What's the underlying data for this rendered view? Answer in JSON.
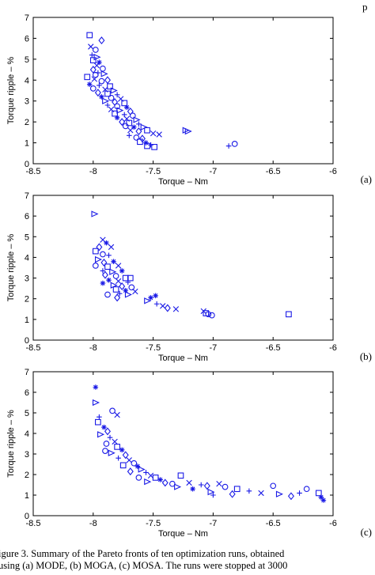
{
  "figure_caption": {
    "line1": "igure 3.    Summary of the Pareto fronts of ten optimization runs, obtained",
    "line2": "using (a) MODE, (b) MOGA, (c) MOSA. The runs were stopped at 3000"
  },
  "header_fragment": "p",
  "colors": {
    "marker": "#1a1ae6",
    "axis": "#000000"
  },
  "chart_data": [
    {
      "type": "scatter",
      "panel_label": "(a)",
      "xlabel": "Torque – Nm",
      "ylabel": "Torque ripple – %",
      "xlim": [
        -8.5,
        -6.0
      ],
      "ylim": [
        0,
        7
      ],
      "xticks": [
        "-8.5",
        "-8",
        "-7.5",
        "-7",
        "-6.5",
        "-6"
      ],
      "yticks": [
        "0",
        "1",
        "2",
        "3",
        "4",
        "5",
        "6",
        "7"
      ],
      "grid": false,
      "points": [
        [
          -8.03,
          6.15,
          "s"
        ],
        [
          -7.93,
          5.9,
          "d"
        ],
        [
          -8.02,
          5.6,
          "x"
        ],
        [
          -7.98,
          5.45,
          "o"
        ],
        [
          -8.01,
          5.2,
          "+"
        ],
        [
          -7.97,
          5.1,
          "t"
        ],
        [
          -8.0,
          4.95,
          "s"
        ],
        [
          -7.95,
          4.85,
          "*"
        ],
        [
          -7.97,
          4.7,
          "x"
        ],
        [
          -7.92,
          4.55,
          "o"
        ],
        [
          -8.0,
          4.5,
          "d"
        ],
        [
          -7.96,
          4.35,
          "+"
        ],
        [
          -7.91,
          4.3,
          "t"
        ],
        [
          -8.05,
          4.15,
          "s"
        ],
        [
          -7.99,
          4.05,
          "x"
        ],
        [
          -7.93,
          3.95,
          "o"
        ],
        [
          -7.88,
          4.0,
          "d"
        ],
        [
          -8.03,
          3.8,
          "*"
        ],
        [
          -7.95,
          3.75,
          "+"
        ],
        [
          -7.86,
          3.7,
          "s"
        ],
        [
          -8.0,
          3.6,
          "o"
        ],
        [
          -7.9,
          3.55,
          "x"
        ],
        [
          -7.83,
          3.5,
          "t"
        ],
        [
          -7.96,
          3.4,
          "d"
        ],
        [
          -7.88,
          3.35,
          "s"
        ],
        [
          -7.8,
          3.3,
          "+"
        ],
        [
          -7.93,
          3.2,
          "*"
        ],
        [
          -7.85,
          3.15,
          "o"
        ],
        [
          -7.77,
          3.1,
          "x"
        ],
        [
          -7.9,
          3.0,
          "t"
        ],
        [
          -7.82,
          2.95,
          "d"
        ],
        [
          -7.74,
          2.9,
          "s"
        ],
        [
          -7.88,
          2.8,
          "+"
        ],
        [
          -7.8,
          2.75,
          "o"
        ],
        [
          -7.72,
          2.7,
          "*"
        ],
        [
          -7.85,
          2.6,
          "x"
        ],
        [
          -7.78,
          2.55,
          "t"
        ],
        [
          -7.69,
          2.5,
          "d"
        ],
        [
          -7.82,
          2.4,
          "s"
        ],
        [
          -7.74,
          2.35,
          "+"
        ],
        [
          -7.67,
          2.3,
          "o"
        ],
        [
          -7.8,
          2.2,
          "*"
        ],
        [
          -7.72,
          2.15,
          "x"
        ],
        [
          -7.64,
          2.1,
          "t"
        ],
        [
          -7.76,
          2.0,
          "d"
        ],
        [
          -7.7,
          1.95,
          "s"
        ],
        [
          -7.62,
          1.9,
          "+"
        ],
        [
          -7.73,
          1.8,
          "o"
        ],
        [
          -7.66,
          1.75,
          "*"
        ],
        [
          -7.58,
          1.75,
          "t"
        ],
        [
          -7.69,
          1.6,
          "x"
        ],
        [
          -7.62,
          1.55,
          "d"
        ],
        [
          -7.55,
          1.6,
          "s"
        ],
        [
          -7.5,
          1.45,
          "x"
        ],
        [
          -7.7,
          1.35,
          "+"
        ],
        [
          -7.64,
          1.25,
          "o"
        ],
        [
          -7.59,
          1.2,
          "d"
        ],
        [
          -7.61,
          1.05,
          "s"
        ],
        [
          -7.56,
          1.0,
          "*"
        ],
        [
          -7.52,
          0.9,
          "+"
        ],
        [
          -7.55,
          0.85,
          "s"
        ],
        [
          -7.49,
          0.8,
          "s"
        ],
        [
          -7.23,
          1.6,
          "t"
        ],
        [
          -7.21,
          1.55,
          "t"
        ],
        [
          -6.87,
          0.85,
          "+"
        ],
        [
          -6.82,
          0.95,
          "o"
        ],
        [
          -7.45,
          1.4,
          "x"
        ],
        [
          -7.98,
          4.25,
          "o"
        ]
      ]
    },
    {
      "type": "scatter",
      "panel_label": "(b)",
      "xlabel": "Torque – Nm",
      "ylabel": "Torque ripple – %",
      "xlim": [
        -8.5,
        -6.0
      ],
      "ylim": [
        0,
        7
      ],
      "xticks": [
        "-8.5",
        "-8",
        "-7.5",
        "-7",
        "-6.5",
        "-6"
      ],
      "yticks": [
        "0",
        "1",
        "2",
        "3",
        "4",
        "5",
        "6",
        "7"
      ],
      "grid": false,
      "points": [
        [
          -7.99,
          6.1,
          "t"
        ],
        [
          -7.92,
          4.85,
          "x"
        ],
        [
          -7.89,
          4.7,
          "*"
        ],
        [
          -7.95,
          4.5,
          "d"
        ],
        [
          -7.85,
          4.5,
          "x"
        ],
        [
          -7.98,
          4.3,
          "s"
        ],
        [
          -7.92,
          4.15,
          "o"
        ],
        [
          -7.87,
          4.1,
          "+"
        ],
        [
          -7.96,
          3.9,
          "t"
        ],
        [
          -7.91,
          3.75,
          "d"
        ],
        [
          -7.83,
          3.8,
          "*"
        ],
        [
          -7.98,
          3.6,
          "o"
        ],
        [
          -7.88,
          3.55,
          "s"
        ],
        [
          -7.79,
          3.6,
          "x"
        ],
        [
          -7.92,
          3.35,
          "+"
        ],
        [
          -7.84,
          3.3,
          "t"
        ],
        [
          -7.76,
          3.35,
          "*"
        ],
        [
          -7.9,
          3.15,
          "d"
        ],
        [
          -7.81,
          3.1,
          "o"
        ],
        [
          -7.73,
          3.0,
          "s"
        ],
        [
          -7.69,
          3.0,
          "s"
        ],
        [
          -7.87,
          2.9,
          "*"
        ],
        [
          -7.79,
          2.85,
          "x"
        ],
        [
          -7.71,
          2.8,
          "+"
        ],
        [
          -7.83,
          2.65,
          "t"
        ],
        [
          -7.76,
          2.6,
          "d"
        ],
        [
          -7.68,
          2.55,
          "o"
        ],
        [
          -7.81,
          2.45,
          "s"
        ],
        [
          -7.73,
          2.4,
          "*"
        ],
        [
          -7.65,
          2.35,
          "x"
        ],
        [
          -7.78,
          2.25,
          "+"
        ],
        [
          -7.71,
          2.2,
          "t"
        ],
        [
          -7.8,
          2.05,
          "d"
        ],
        [
          -7.92,
          2.75,
          "*"
        ],
        [
          -7.88,
          2.2,
          "o"
        ],
        [
          -7.55,
          1.9,
          "t"
        ],
        [
          -7.52,
          2.05,
          "*"
        ],
        [
          -7.47,
          1.75,
          "+"
        ],
        [
          -7.42,
          1.65,
          "x"
        ],
        [
          -7.38,
          1.55,
          "d"
        ],
        [
          -7.31,
          1.5,
          "x"
        ],
        [
          -7.08,
          1.4,
          "x"
        ],
        [
          -7.06,
          1.3,
          "s"
        ],
        [
          -7.04,
          1.25,
          "o"
        ],
        [
          -7.01,
          1.2,
          "o"
        ],
        [
          -6.37,
          1.25,
          "s"
        ],
        [
          -7.48,
          2.15,
          "*"
        ]
      ]
    },
    {
      "type": "scatter",
      "panel_label": "(c)",
      "xlabel": "Torque – Nm",
      "ylabel": "Torque ripple – %",
      "xlim": [
        -8.5,
        -6.0
      ],
      "ylim": [
        0,
        7
      ],
      "xticks": [
        "-8.5",
        "-8",
        "-7.5",
        "-7",
        "-6.5",
        "-6"
      ],
      "yticks": [
        "0",
        "1",
        "2",
        "3",
        "4",
        "5",
        "6",
        "7"
      ],
      "grid": false,
      "points": [
        [
          -7.98,
          6.25,
          "*"
        ],
        [
          -7.98,
          5.5,
          "t"
        ],
        [
          -7.84,
          5.1,
          "o"
        ],
        [
          -7.95,
          4.8,
          "+"
        ],
        [
          -7.8,
          4.9,
          "x"
        ],
        [
          -7.96,
          4.55,
          "s"
        ],
        [
          -7.91,
          4.3,
          "*"
        ],
        [
          -7.88,
          4.1,
          "d"
        ],
        [
          -7.94,
          3.95,
          "t"
        ],
        [
          -7.86,
          3.8,
          "+"
        ],
        [
          -7.82,
          3.6,
          "x"
        ],
        [
          -7.89,
          3.5,
          "o"
        ],
        [
          -7.8,
          3.35,
          "s"
        ],
        [
          -7.76,
          3.2,
          "*"
        ],
        [
          -7.85,
          3.05,
          "t"
        ],
        [
          -7.73,
          2.95,
          "d"
        ],
        [
          -7.79,
          2.8,
          "+"
        ],
        [
          -7.7,
          2.7,
          "x"
        ],
        [
          -7.66,
          2.55,
          "o"
        ],
        [
          -7.75,
          2.45,
          "s"
        ],
        [
          -7.63,
          2.4,
          "*"
        ],
        [
          -7.6,
          2.25,
          "t"
        ],
        [
          -7.69,
          2.15,
          "d"
        ],
        [
          -7.56,
          2.1,
          "+"
        ],
        [
          -7.52,
          1.95,
          "x"
        ],
        [
          -7.62,
          1.85,
          "o"
        ],
        [
          -7.48,
          1.85,
          "s"
        ],
        [
          -7.44,
          1.75,
          "*"
        ],
        [
          -7.55,
          1.65,
          "t"
        ],
        [
          -7.4,
          1.6,
          "d"
        ],
        [
          -7.34,
          1.55,
          "o"
        ],
        [
          -7.27,
          1.95,
          "s"
        ],
        [
          -7.2,
          1.6,
          "x"
        ],
        [
          -7.1,
          1.5,
          "+"
        ],
        [
          -7.05,
          1.45,
          "d"
        ],
        [
          -7.3,
          1.4,
          "t"
        ],
        [
          -7.17,
          1.3,
          "*"
        ],
        [
          -6.95,
          1.55,
          "x"
        ],
        [
          -6.9,
          1.4,
          "o"
        ],
        [
          -6.8,
          1.3,
          "s"
        ],
        [
          -7.02,
          1.15,
          "t"
        ],
        [
          -6.84,
          1.05,
          "d"
        ],
        [
          -6.7,
          1.2,
          "+"
        ],
        [
          -6.6,
          1.1,
          "x"
        ],
        [
          -6.5,
          1.45,
          "o"
        ],
        [
          -6.45,
          1.05,
          "t"
        ],
        [
          -6.35,
          0.95,
          "d"
        ],
        [
          -6.28,
          1.1,
          "+"
        ],
        [
          -6.22,
          1.3,
          "o"
        ],
        [
          -6.12,
          1.1,
          "s"
        ],
        [
          -6.1,
          0.9,
          "*"
        ],
        [
          -6.08,
          0.75,
          "*"
        ],
        [
          -7.0,
          1.0,
          "+"
        ],
        [
          -7.9,
          3.15,
          "o"
        ]
      ]
    }
  ]
}
